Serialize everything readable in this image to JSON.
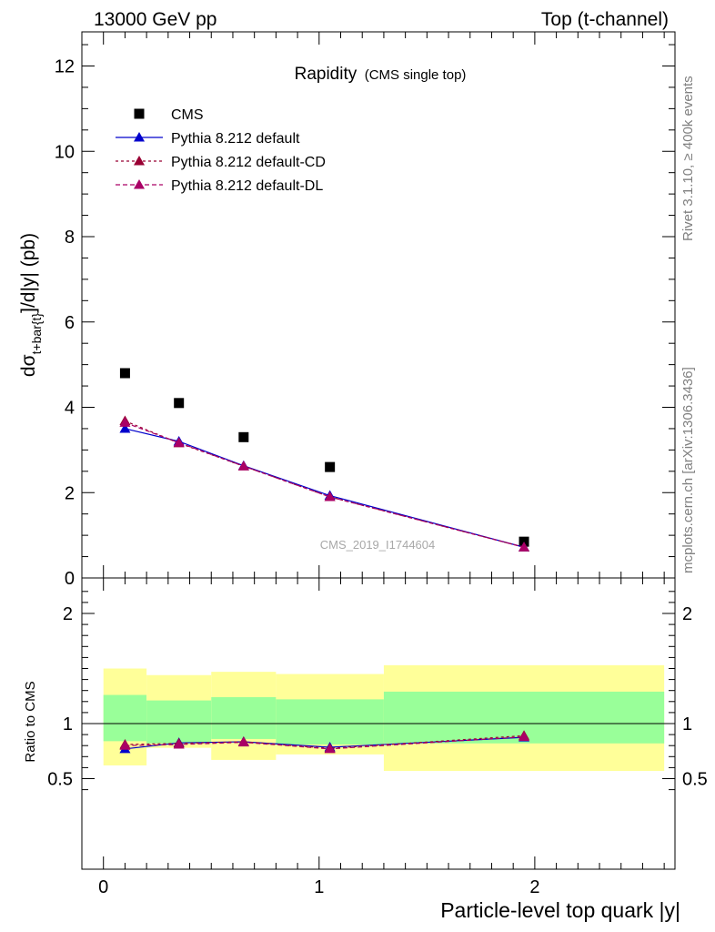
{
  "header": {
    "left": "13000 GeV pp",
    "right": "Top (t-channel)"
  },
  "title": {
    "main": "Rapidity",
    "sub": "(CMS single top)"
  },
  "side_labels": {
    "rivet": "Rivet 3.1.10, ≥ 400k events",
    "mcplots": "mcplots.cern.ch [arXiv:1306.3436]"
  },
  "watermark": "CMS_2019_I1744604",
  "axes": {
    "xlabel": "Particle-level top quark |y|",
    "ylabel_main_prefix": "dσ",
    "ylabel_main_sub": "t+bar{t}",
    "ylabel_main_suffix": "]/d|y|  (pb)",
    "ylabel_ratio": "Ratio to CMS"
  },
  "colors": {
    "data": "#000000",
    "default": "#0000cc",
    "cd": "#990033",
    "dl": "#aa0066",
    "band_inner": "#99ff99",
    "band_outer": "#ffff99"
  },
  "chart_data": [
    {
      "type": "scatter",
      "panel": "main",
      "xlim": [
        -0.1,
        2.65
      ],
      "ylim": [
        0,
        12.8
      ],
      "yticks": [
        0,
        2,
        4,
        6,
        8,
        10,
        12
      ],
      "legend": [
        {
          "label": "CMS",
          "marker": "square",
          "key": "data"
        },
        {
          "label": "Pythia 8.212 default",
          "marker": "triangle",
          "key": "default"
        },
        {
          "label": "Pythia 8.212 default-CD",
          "marker": "triangle",
          "key": "cd"
        },
        {
          "label": "Pythia 8.212 default-DL",
          "marker": "triangle",
          "key": "dl"
        }
      ],
      "series": [
        {
          "key": "data",
          "x": [
            0.1,
            0.35,
            0.65,
            1.05,
            1.95
          ],
          "values": [
            4.8,
            4.1,
            3.3,
            2.6,
            0.85
          ]
        },
        {
          "key": "default",
          "x": [
            0.1,
            0.35,
            0.65,
            1.05,
            1.95
          ],
          "values": [
            3.5,
            3.2,
            2.63,
            1.93,
            0.72
          ]
        },
        {
          "key": "cd",
          "x": [
            0.1,
            0.35,
            0.65,
            1.05,
            1.95
          ],
          "values": [
            3.68,
            3.16,
            2.62,
            1.9,
            0.72
          ]
        },
        {
          "key": "dl",
          "x": [
            0.1,
            0.35,
            0.65,
            1.05,
            1.95
          ],
          "values": [
            3.64,
            3.17,
            2.62,
            1.9,
            0.72
          ]
        }
      ]
    },
    {
      "type": "line",
      "panel": "ratio",
      "xlim": [
        -0.1,
        2.65
      ],
      "ylim": [
        0.35,
        2.3
      ],
      "yticks": [
        0.5,
        1,
        2
      ],
      "xticks": [
        0,
        1,
        2
      ],
      "reference": 1,
      "bins": [
        [
          0,
          0.2
        ],
        [
          0.2,
          0.5
        ],
        [
          0.5,
          0.8
        ],
        [
          0.8,
          1.3
        ],
        [
          1.3,
          2.6
        ]
      ],
      "band_inner": [
        [
          0.84,
          1.26
        ],
        [
          0.82,
          1.21
        ],
        [
          0.86,
          1.24
        ],
        [
          0.81,
          1.22
        ],
        [
          0.82,
          1.29
        ]
      ],
      "band_outer": [
        [
          0.62,
          1.5
        ],
        [
          0.78,
          1.44
        ],
        [
          0.67,
          1.47
        ],
        [
          0.72,
          1.45
        ],
        [
          0.57,
          1.53
        ]
      ],
      "series": [
        {
          "key": "default",
          "x": [
            0.1,
            0.35,
            0.65,
            1.05,
            1.95
          ],
          "values": [
            0.77,
            0.825,
            0.835,
            0.785,
            0.875
          ]
        },
        {
          "key": "cd",
          "x": [
            0.1,
            0.35,
            0.65,
            1.05,
            1.95
          ],
          "values": [
            0.81,
            0.82,
            0.835,
            0.775,
            0.89
          ]
        },
        {
          "key": "dl",
          "x": [
            0.1,
            0.35,
            0.65,
            1.05,
            1.95
          ],
          "values": [
            0.8,
            0.81,
            0.83,
            0.77,
            0.88
          ]
        }
      ]
    }
  ]
}
